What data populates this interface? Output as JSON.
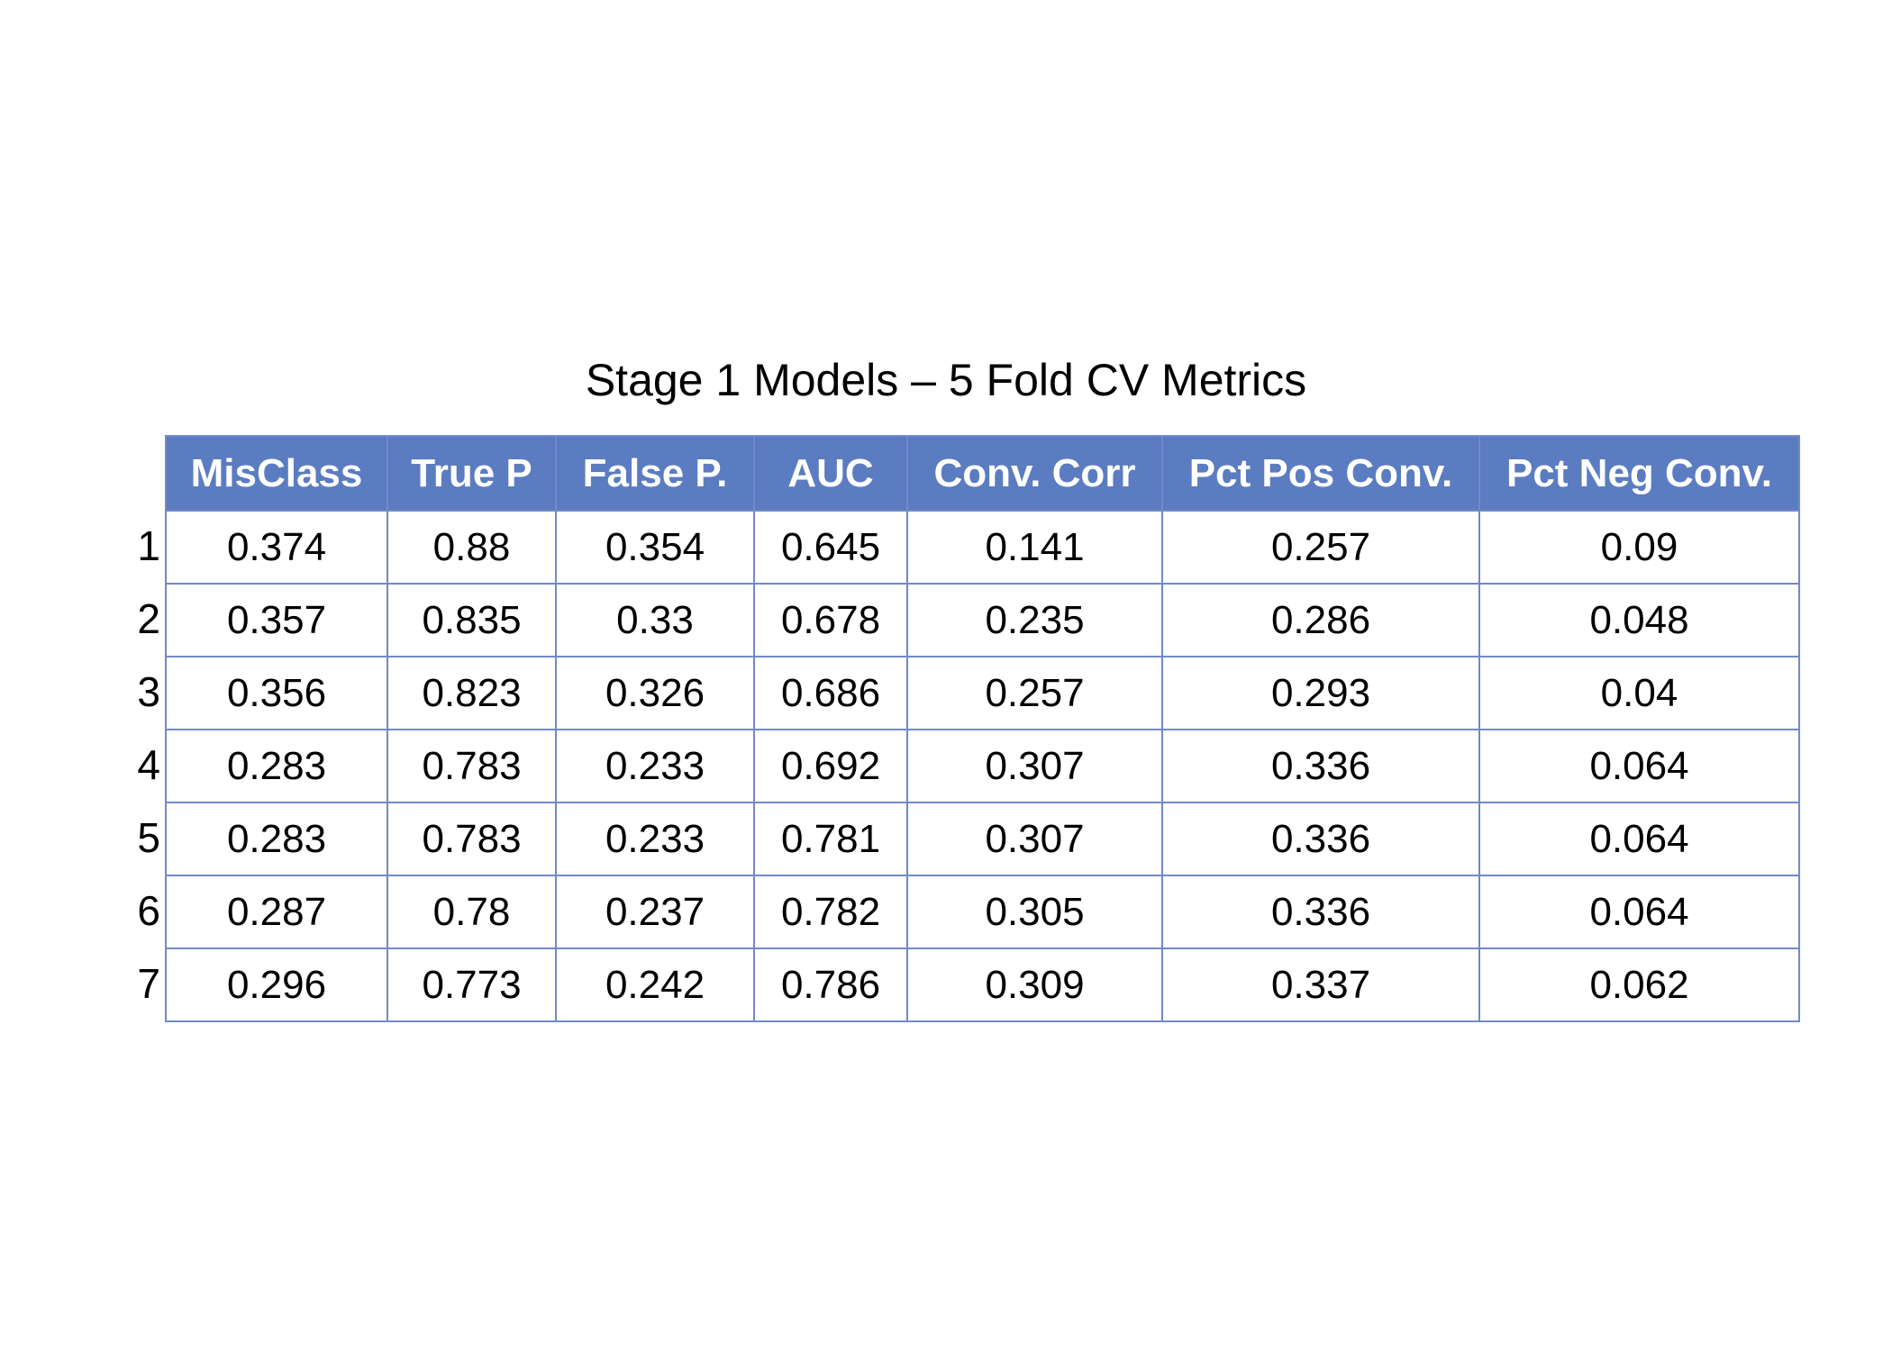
{
  "chart_data": {
    "type": "table",
    "title": "Stage 1 Models – 5 Fold CV Metrics",
    "columns": [
      "MisClass",
      "True P",
      "False P.",
      "AUC",
      "Conv. Corr",
      "Pct Pos Conv.",
      "Pct Neg Conv."
    ],
    "row_labels": [
      "1",
      "2",
      "3",
      "4",
      "5",
      "6",
      "7"
    ],
    "rows": [
      [
        "0.374",
        "0.88",
        "0.354",
        "0.645",
        "0.141",
        "0.257",
        "0.09"
      ],
      [
        "0.357",
        "0.835",
        "0.33",
        "0.678",
        "0.235",
        "0.286",
        "0.048"
      ],
      [
        "0.356",
        "0.823",
        "0.326",
        "0.686",
        "0.257",
        "0.293",
        "0.04"
      ],
      [
        "0.283",
        "0.783",
        "0.233",
        "0.692",
        "0.307",
        "0.336",
        "0.064"
      ],
      [
        "0.283",
        "0.783",
        "0.233",
        "0.781",
        "0.307",
        "0.336",
        "0.064"
      ],
      [
        "0.287",
        "0.78",
        "0.237",
        "0.782",
        "0.305",
        "0.336",
        "0.064"
      ],
      [
        "0.296",
        "0.773",
        "0.242",
        "0.786",
        "0.309",
        "0.337",
        "0.062"
      ]
    ],
    "header_color": "#5b7cc0",
    "border_color": "#7289c9"
  }
}
